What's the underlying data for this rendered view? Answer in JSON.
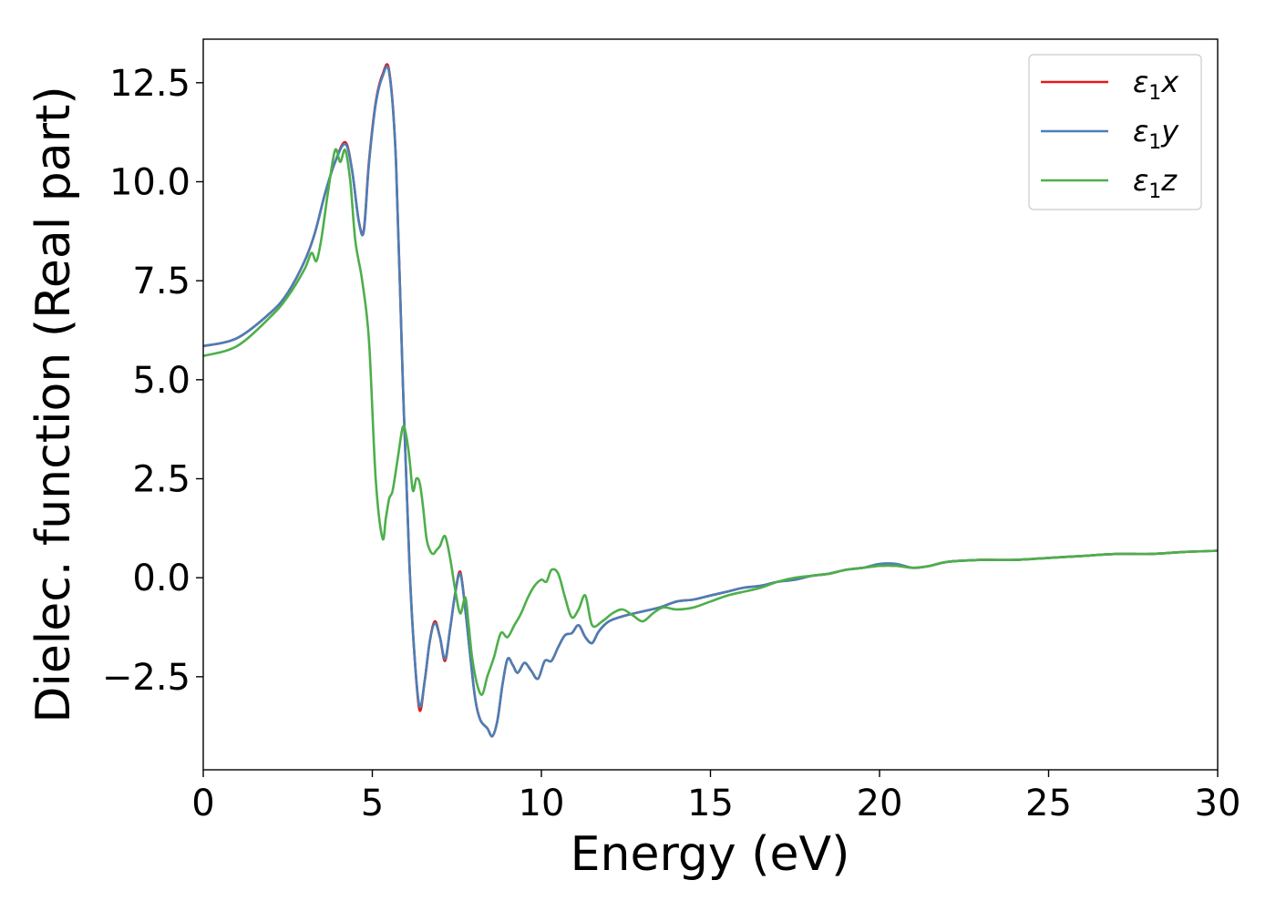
{
  "chart_data": {
    "type": "line",
    "xlabel": "Energy (eV)",
    "ylabel": "Dielec. function (Real part)",
    "xlim": [
      0,
      30
    ],
    "ylim": [
      -4.85,
      13.6
    ],
    "xticks": [
      0,
      5,
      10,
      15,
      20,
      25,
      30
    ],
    "xtick_labels": [
      "0",
      "5",
      "10",
      "15",
      "20",
      "25",
      "30"
    ],
    "yticks": [
      -2.5,
      0.0,
      2.5,
      5.0,
      7.5,
      10.0,
      12.5
    ],
    "ytick_labels": [
      "−2.5",
      "0.0",
      "2.5",
      "5.0",
      "7.5",
      "10.0",
      "12.5"
    ],
    "grid": false,
    "legend_position": "top-right",
    "series": [
      {
        "name": "ε1x",
        "legend_base": "ε",
        "legend_sub": "1",
        "legend_var": "x",
        "color": "#e41a1c",
        "x": [
          0,
          1,
          2,
          2.5,
          3,
          3.3,
          3.6,
          3.9,
          4.2,
          4.4,
          4.6,
          4.75,
          4.9,
          5.1,
          5.3,
          5.5,
          5.7,
          5.9,
          6.1,
          6.25,
          6.4,
          6.55,
          6.7,
          6.85,
          7.0,
          7.15,
          7.3,
          7.45,
          7.6,
          7.75,
          7.9,
          8.05,
          8.2,
          8.4,
          8.55,
          8.7,
          8.85,
          9.0,
          9.15,
          9.3,
          9.5,
          9.7,
          9.9,
          10.1,
          10.3,
          10.5,
          10.7,
          10.9,
          11.1,
          11.3,
          11.5,
          11.7,
          12.0,
          12.5,
          13.0,
          13.5,
          14.0,
          14.5,
          15.0,
          15.5,
          16.0,
          16.5,
          17.0,
          17.5,
          18.0,
          18.5,
          19.0,
          19.5,
          20.0,
          20.5,
          21.0,
          21.5,
          22.0,
          23.0,
          24.0,
          25.0,
          26.0,
          27.0,
          28.0,
          29.0,
          30.0
        ],
        "y": [
          5.85,
          6.05,
          6.7,
          7.2,
          8.0,
          8.7,
          9.7,
          10.5,
          11.0,
          10.3,
          9.0,
          8.8,
          10.5,
          12.0,
          12.7,
          12.8,
          10.5,
          5.0,
          0.3,
          -2.0,
          -3.35,
          -2.6,
          -1.6,
          -1.1,
          -1.5,
          -2.1,
          -1.3,
          -0.4,
          0.15,
          -0.8,
          -2.0,
          -3.1,
          -3.6,
          -3.8,
          -4.0,
          -3.6,
          -2.7,
          -2.05,
          -2.2,
          -2.4,
          -2.15,
          -2.35,
          -2.55,
          -2.1,
          -2.1,
          -1.75,
          -1.45,
          -1.4,
          -1.2,
          -1.5,
          -1.65,
          -1.35,
          -1.1,
          -0.95,
          -0.85,
          -0.75,
          -0.6,
          -0.55,
          -0.45,
          -0.35,
          -0.25,
          -0.2,
          -0.1,
          -0.05,
          0.05,
          0.1,
          0.2,
          0.25,
          0.3,
          0.3,
          0.25,
          0.3,
          0.4,
          0.45,
          0.45,
          0.5,
          0.55,
          0.6,
          0.6,
          0.65,
          0.68
        ]
      },
      {
        "name": "ε1y",
        "legend_base": "ε",
        "legend_sub": "1",
        "legend_var": "y",
        "color": "#4a7fb6",
        "x": [
          0,
          1,
          2,
          2.5,
          3,
          3.3,
          3.6,
          3.9,
          4.2,
          4.4,
          4.6,
          4.75,
          4.9,
          5.1,
          5.3,
          5.5,
          5.7,
          5.9,
          6.1,
          6.25,
          6.4,
          6.55,
          6.7,
          6.85,
          7.0,
          7.15,
          7.3,
          7.45,
          7.6,
          7.75,
          7.9,
          8.05,
          8.2,
          8.4,
          8.55,
          8.7,
          8.85,
          9.0,
          9.15,
          9.3,
          9.5,
          9.7,
          9.9,
          10.1,
          10.3,
          10.5,
          10.7,
          10.9,
          11.1,
          11.3,
          11.5,
          11.7,
          12.0,
          12.5,
          13.0,
          13.5,
          14.0,
          14.5,
          15.0,
          15.5,
          16.0,
          16.5,
          17.0,
          17.5,
          18.0,
          18.5,
          19.0,
          19.5,
          20.0,
          20.5,
          21.0,
          21.5,
          22.0,
          23.0,
          24.0,
          25.0,
          26.0,
          27.0,
          28.0,
          29.0,
          30.0
        ],
        "y": [
          5.85,
          6.05,
          6.7,
          7.2,
          8.0,
          8.7,
          9.7,
          10.5,
          10.95,
          10.3,
          9.0,
          8.75,
          10.45,
          11.95,
          12.65,
          12.75,
          10.5,
          5.0,
          0.3,
          -2.0,
          -3.25,
          -2.6,
          -1.6,
          -1.15,
          -1.5,
          -2.05,
          -1.3,
          -0.4,
          0.1,
          -0.8,
          -2.0,
          -3.1,
          -3.6,
          -3.8,
          -4.0,
          -3.6,
          -2.7,
          -2.05,
          -2.2,
          -2.4,
          -2.15,
          -2.35,
          -2.55,
          -2.1,
          -2.1,
          -1.75,
          -1.45,
          -1.4,
          -1.2,
          -1.5,
          -1.65,
          -1.35,
          -1.1,
          -0.95,
          -0.85,
          -0.75,
          -0.6,
          -0.55,
          -0.45,
          -0.35,
          -0.25,
          -0.2,
          -0.1,
          -0.05,
          0.05,
          0.1,
          0.2,
          0.25,
          0.35,
          0.35,
          0.25,
          0.3,
          0.4,
          0.45,
          0.45,
          0.5,
          0.55,
          0.6,
          0.6,
          0.65,
          0.68
        ]
      },
      {
        "name": "ε1z",
        "legend_base": "ε",
        "legend_sub": "1",
        "legend_var": "z",
        "color": "#4daf4a",
        "x": [
          0,
          1,
          2,
          2.5,
          3,
          3.2,
          3.35,
          3.5,
          3.7,
          3.9,
          4.05,
          4.2,
          4.35,
          4.5,
          4.7,
          4.9,
          5.1,
          5.3,
          5.4,
          5.5,
          5.6,
          5.75,
          5.9,
          6.0,
          6.1,
          6.2,
          6.3,
          6.4,
          6.5,
          6.6,
          6.7,
          6.8,
          6.9,
          7.0,
          7.15,
          7.3,
          7.45,
          7.6,
          7.75,
          7.85,
          7.95,
          8.1,
          8.25,
          8.4,
          8.6,
          8.8,
          9.0,
          9.2,
          9.4,
          9.6,
          9.8,
          10.0,
          10.15,
          10.3,
          10.5,
          10.7,
          10.9,
          11.1,
          11.3,
          11.5,
          11.8,
          12.1,
          12.4,
          12.7,
          13.0,
          13.3,
          13.6,
          14.0,
          14.5,
          15.0,
          15.5,
          16.0,
          16.5,
          17.0,
          17.5,
          18.0,
          18.5,
          19.0,
          19.5,
          20.0,
          20.5,
          21.0,
          21.5,
          22.0,
          23.0,
          24.0,
          25.0,
          26.0,
          27.0,
          28.0,
          29.0,
          30.0
        ],
        "y": [
          5.6,
          5.85,
          6.6,
          7.1,
          7.8,
          8.2,
          8.0,
          8.6,
          9.8,
          10.8,
          10.5,
          10.8,
          10.0,
          8.5,
          7.5,
          6.0,
          2.5,
          1.0,
          1.5,
          2.0,
          2.2,
          3.0,
          3.8,
          3.6,
          3.0,
          2.2,
          2.5,
          2.4,
          1.8,
          1.0,
          0.7,
          0.6,
          0.7,
          0.8,
          1.05,
          0.5,
          -0.3,
          -0.9,
          -0.5,
          -1.2,
          -2.0,
          -2.7,
          -2.95,
          -2.5,
          -2.0,
          -1.4,
          -1.5,
          -1.2,
          -0.9,
          -0.5,
          -0.2,
          -0.05,
          -0.1,
          0.2,
          0.1,
          -0.5,
          -1.0,
          -0.8,
          -0.45,
          -1.2,
          -1.1,
          -0.9,
          -0.8,
          -0.95,
          -1.1,
          -0.9,
          -0.75,
          -0.8,
          -0.75,
          -0.6,
          -0.45,
          -0.35,
          -0.25,
          -0.1,
          0.0,
          0.05,
          0.1,
          0.2,
          0.25,
          0.3,
          0.3,
          0.25,
          0.3,
          0.4,
          0.45,
          0.45,
          0.5,
          0.55,
          0.6,
          0.6,
          0.65,
          0.68
        ]
      }
    ]
  }
}
